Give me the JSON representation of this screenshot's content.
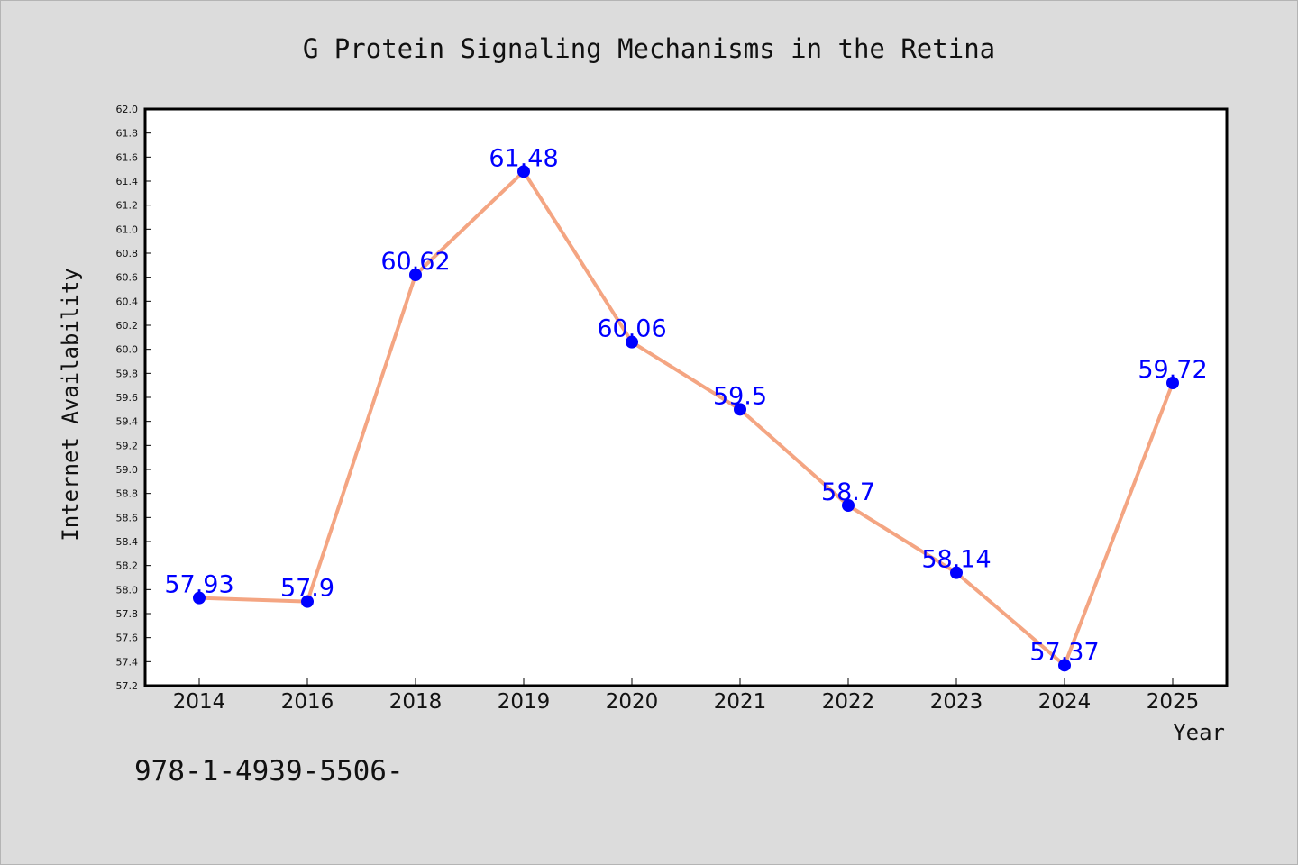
{
  "chart_data": {
    "type": "line",
    "title": "G Protein Signaling Mechanisms in the Retina",
    "xlabel": "Year",
    "ylabel": "Internet Availability",
    "categories": [
      "2014",
      "2016",
      "2018",
      "2019",
      "2020",
      "2021",
      "2022",
      "2023",
      "2024",
      "2025"
    ],
    "series": [
      {
        "values": [
          57.93,
          57.9,
          60.62,
          61.48,
          60.06,
          59.5,
          58.7,
          58.14,
          57.37,
          59.72
        ],
        "data_labels": [
          "57.93",
          "57.9",
          "60.62",
          "61.48",
          "60.06",
          "59.5",
          "58.7",
          "58.14",
          "57.37",
          "59.72"
        ]
      }
    ],
    "yticks": [
      "57.2",
      "57.4",
      "57.6",
      "57.8",
      "58.0",
      "58.2",
      "58.4",
      "58.6",
      "58.8",
      "59.0",
      "59.2",
      "59.4",
      "59.6",
      "59.8",
      "60.0",
      "60.2",
      "60.4",
      "60.6",
      "60.8",
      "61.0",
      "61.2",
      "61.4",
      "61.6",
      "61.8",
      "62.0"
    ],
    "ylim": [
      57.2,
      62.0
    ],
    "grid": false,
    "legend": "none",
    "colors": {
      "line": "#f4a582",
      "marker": "#0000ff",
      "data_label": "#0000ff",
      "background": "#dcdcdc",
      "plot_background": "#ffffff"
    }
  },
  "footer": {
    "text": "978-1-4939-5506-"
  }
}
